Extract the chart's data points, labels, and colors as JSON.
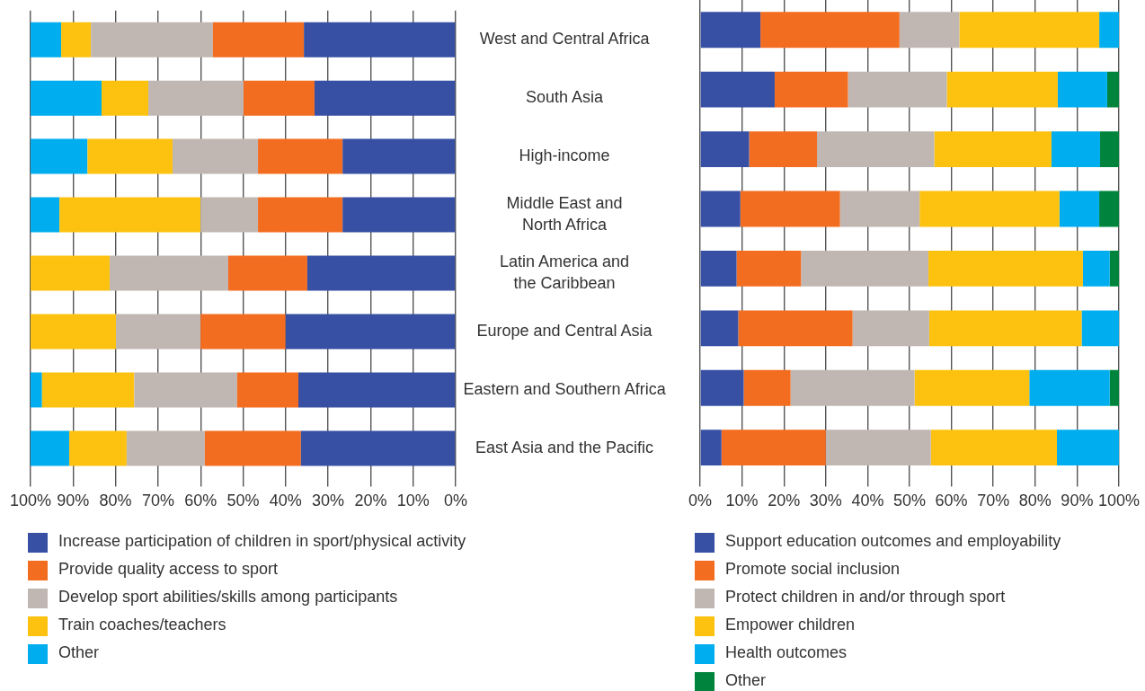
{
  "chart_data": [
    {
      "type": "bar",
      "orientation": "horizontal",
      "stacked": true,
      "grid": "x",
      "legend": "bottom",
      "categories": [
        "West and Central Africa",
        "South Asia",
        "High-income",
        "Middle East and North Africa",
        "Latin America and the Caribbean",
        "Europe and Central Asia",
        "Eastern and Southern Africa",
        "East Asia and the Pacific"
      ],
      "xlim": [
        100,
        0
      ],
      "xticks": [
        {
          "value": 100,
          "label": "100%"
        },
        {
          "value": 90,
          "label": "90%"
        },
        {
          "value": 80,
          "label": "80%"
        },
        {
          "value": 70,
          "label": "70%"
        },
        {
          "value": 60,
          "label": "60%"
        },
        {
          "value": 50,
          "label": "50%"
        },
        {
          "value": 40,
          "label": "40%"
        },
        {
          "value": 30,
          "label": "30%"
        },
        {
          "value": 20,
          "label": "20%"
        },
        {
          "value": 10,
          "label": "10%"
        },
        {
          "value": 0,
          "label": "0%"
        }
      ],
      "series": [
        {
          "name": "Increase participation of children in sport/physical activity",
          "color": "#3750a4",
          "values": [
            35.7,
            33.2,
            26.6,
            26.6,
            34.9,
            40,
            37,
            36.4
          ]
        },
        {
          "name": "Provide quality access to sport",
          "color": "#f36d21",
          "values": [
            21.4,
            16.7,
            19.9,
            19.9,
            18.6,
            20,
            14.4,
            22.6
          ]
        },
        {
          "name": "Develop sport abilities/skills among participants",
          "color": "#c1b7b2",
          "values": [
            28.7,
            22.4,
            20.1,
            13.5,
            27.9,
            19.9,
            24.2,
            18.4
          ]
        },
        {
          "name": "Train coaches/teachers",
          "color": "#fdc210",
          "values": [
            7,
            11,
            20,
            33.2,
            18.6,
            20.1,
            21.7,
            13.5
          ]
        },
        {
          "name": "Other",
          "color": "#00aeef",
          "values": [
            7.2,
            16.7,
            13.4,
            6.8,
            0,
            0,
            2.7,
            9.1
          ]
        }
      ]
    },
    {
      "type": "bar",
      "orientation": "horizontal",
      "stacked": true,
      "grid": "x",
      "legend": "bottom",
      "tick_labels": "x",
      "categories": [
        null,
        null,
        null,
        null,
        null,
        null,
        null,
        null
      ],
      "xlim": [
        0,
        100
      ],
      "xticks": [
        {
          "value": 0,
          "label": "0%"
        },
        {
          "value": 10,
          "label": "10%"
        },
        {
          "value": 20,
          "label": "20%"
        },
        {
          "value": 30,
          "label": "30%"
        },
        {
          "value": 40,
          "label": "40%"
        },
        {
          "value": 50,
          "label": "50%"
        },
        {
          "value": 60,
          "label": "60%"
        },
        {
          "value": 70,
          "label": "70%"
        },
        {
          "value": 80,
          "label": "80%"
        },
        {
          "value": 90,
          "label": "90%"
        },
        {
          "value": 100,
          "label": "100%"
        }
      ],
      "series": [
        {
          "name": "Support education outcomes and employability",
          "color": "#3750a4",
          "values": [
            14.4,
            17.8,
            11.7,
            9.6,
            8.7,
            9.1,
            10.4,
            5.1
          ]
        },
        {
          "name": "Promote social inclusion",
          "color": "#f36d21",
          "values": [
            33.2,
            17.5,
            16.2,
            23.8,
            15.4,
            27.3,
            11.2,
            24.9
          ]
        },
        {
          "name": "Protect children in and/or through sport",
          "color": "#c1b7b2",
          "values": [
            14.3,
            23.6,
            28,
            19,
            30.4,
            18.3,
            29.6,
            25.1
          ]
        },
        {
          "name": "Empower children",
          "color": "#fdc210",
          "values": [
            33.4,
            26.5,
            28,
            33.4,
            36.9,
            36.4,
            27.4,
            30.1
          ]
        },
        {
          "name": "Health outcomes",
          "color": "#00aeef",
          "values": [
            4.7,
            11.8,
            11.6,
            9.5,
            6.4,
            8.9,
            19.2,
            14.8
          ]
        },
        {
          "name": "Other",
          "color": "#00843d",
          "values": [
            0,
            2.8,
            4.5,
            4.7,
            2.2,
            0,
            2.2,
            0
          ]
        }
      ]
    }
  ]
}
